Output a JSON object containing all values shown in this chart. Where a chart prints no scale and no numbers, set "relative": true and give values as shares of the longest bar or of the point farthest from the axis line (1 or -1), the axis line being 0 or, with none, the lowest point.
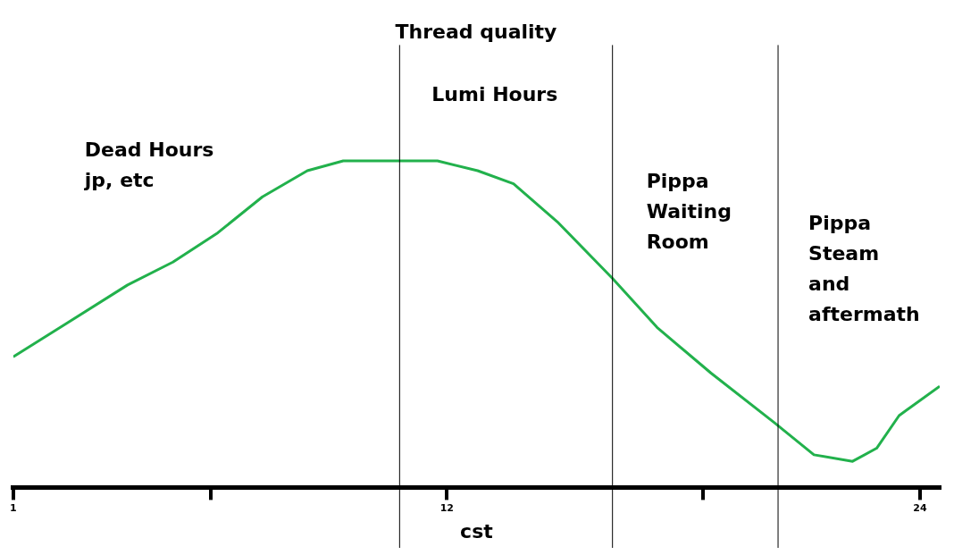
{
  "chart_data": {
    "type": "line",
    "title": "Thread quality",
    "xlabel": "cst",
    "relative": true,
    "x": [
      1,
      2.32,
      3.9,
      5.05,
      6.19,
      7.32,
      8.46,
      9.37,
      10.74,
      11.76,
      12.78,
      13.69,
      14.83,
      16.2,
      17.33,
      18.7,
      20.29,
      21.31,
      22.29,
      22.9,
      23.47,
      24.5
    ],
    "values": [
      0.4,
      0.5,
      0.62,
      0.69,
      0.78,
      0.89,
      0.97,
      1.0,
      1.0,
      1.0,
      0.97,
      0.93,
      0.81,
      0.64,
      0.49,
      0.35,
      0.2,
      0.1,
      0.08,
      0.12,
      0.22,
      0.31
    ],
    "color": "#22b14c",
    "xlim": [
      1,
      24.5
    ],
    "xticks": [
      1,
      {
        "value": 6,
        "label": null
      },
      12,
      {
        "value": 18.5,
        "label": null
      },
      24
    ],
    "ref_lines": [
      {
        "axis": "x",
        "value": 10.8,
        "color": "#000000"
      },
      {
        "axis": "x",
        "value": 16.2,
        "color": "#000000"
      },
      {
        "axis": "x",
        "value": 20.4,
        "color": "#000000"
      }
    ],
    "annotations": [
      "Dead Hours\njp, etc",
      "Lumi Hours",
      "Pippa\nWaiting\nRoom",
      "Pippa\nSteam\nand\naftermath"
    ],
    "grid": false,
    "legend": false,
    "marker": "none",
    "line_style": "solid"
  }
}
